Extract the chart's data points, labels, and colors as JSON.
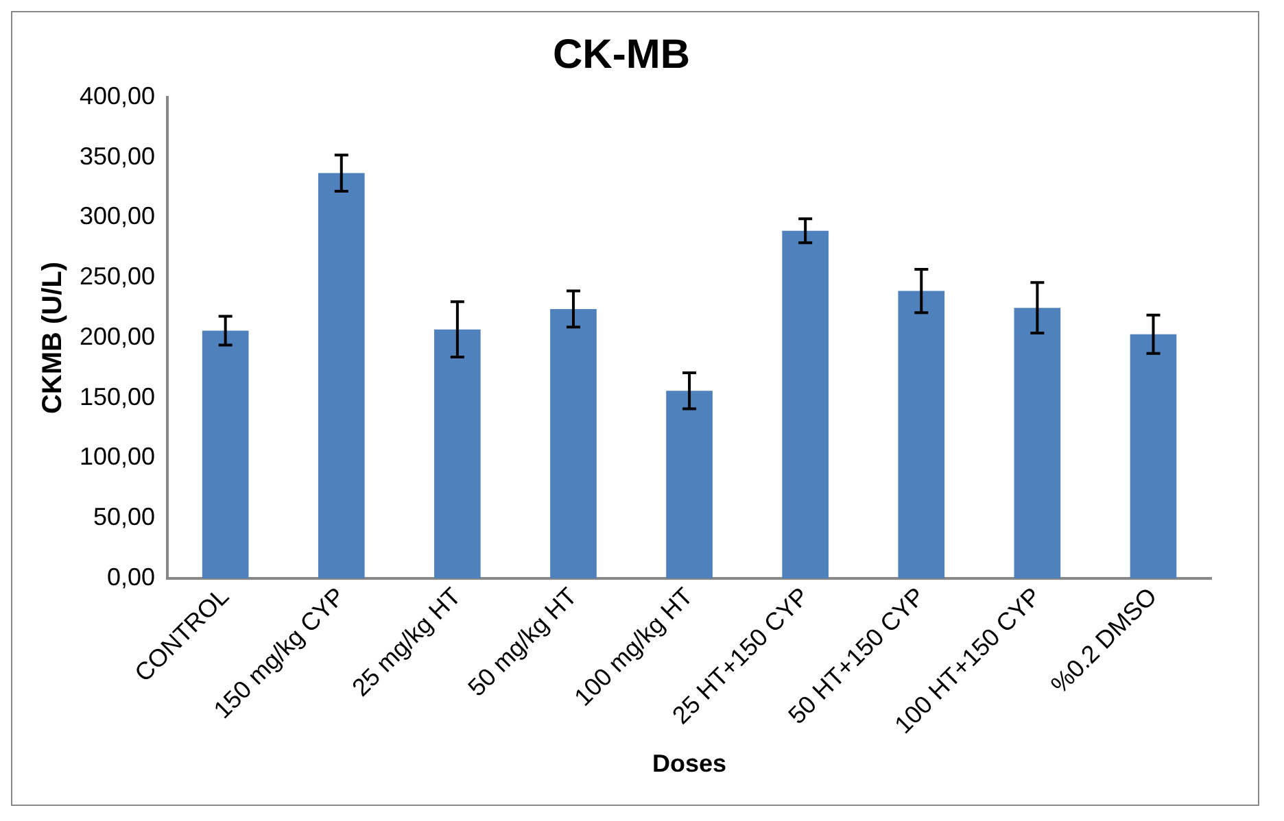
{
  "chart_data": {
    "type": "bar",
    "title": "CK-MB",
    "xlabel": "Doses",
    "ylabel": "CKMB (U/L)",
    "categories": [
      "CONTROL",
      "150 mg/kg CYP",
      "25 mg/kg HT",
      "50 mg/kg HT",
      "100 mg/kg HT",
      "25 HT+150 CYP",
      "50 HT+150 CYP",
      "100 HT+150 CYP",
      "%0.2 DMSO"
    ],
    "values": [
      206,
      337,
      207,
      224,
      156,
      289,
      239,
      225,
      203
    ],
    "errors": [
      12,
      15,
      23,
      15,
      15,
      10,
      18,
      21,
      16
    ],
    "color": "#4f81bd",
    "ylim": [
      0,
      400
    ],
    "yticks": [
      {
        "value": 0,
        "label": "0,00"
      },
      {
        "value": 50,
        "label": "50,00"
      },
      {
        "value": 100,
        "label": "100,00"
      },
      {
        "value": 150,
        "label": "150,00"
      },
      {
        "value": 200,
        "label": "200,00"
      },
      {
        "value": 250,
        "label": "250,00"
      },
      {
        "value": 300,
        "label": "300,00"
      },
      {
        "value": 350,
        "label": "350,00"
      },
      {
        "value": 400,
        "label": "400,00"
      }
    ],
    "grid": false,
    "legend": false
  }
}
